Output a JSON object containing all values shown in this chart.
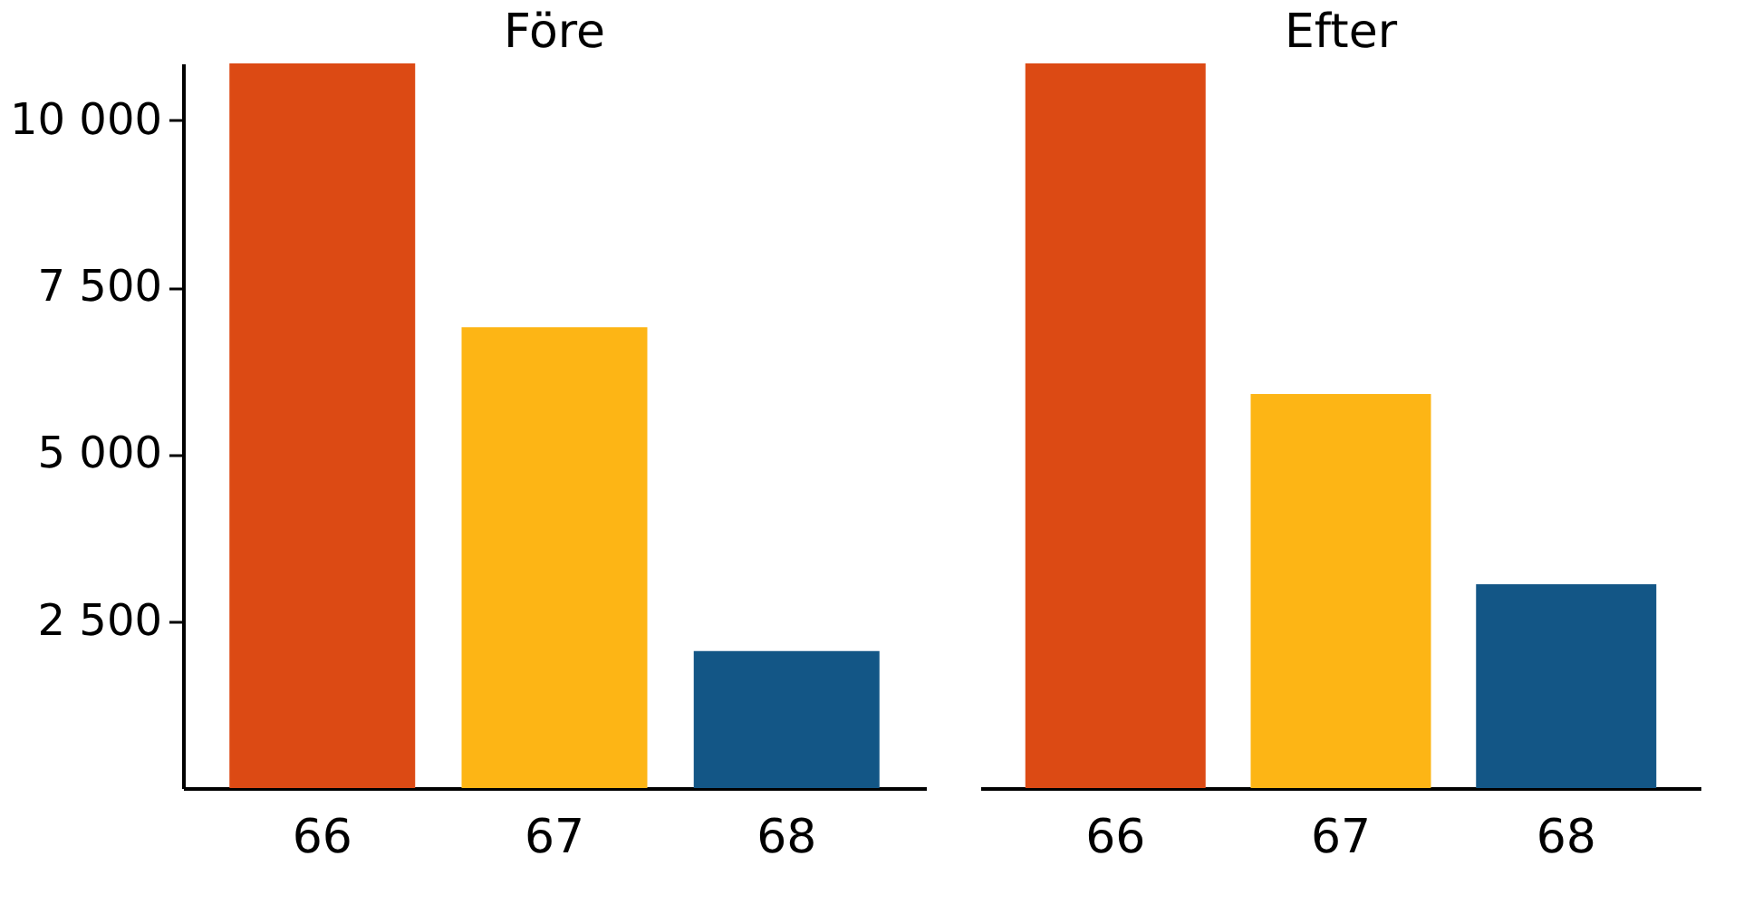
{
  "chart_data": [
    {
      "type": "bar",
      "title": "Före",
      "categories": [
        "66",
        "67",
        "68"
      ],
      "values": [
        10850,
        6900,
        2050
      ],
      "colors": [
        "#dc4a14",
        "#fdb515",
        "#135686"
      ],
      "ylim": [
        0,
        10850
      ],
      "yticks": [
        {
          "value": 2500,
          "label": "2 500"
        },
        {
          "value": 5000,
          "label": "5 000"
        },
        {
          "value": 7500,
          "label": "7 500"
        },
        {
          "value": 10000,
          "label": "10 000"
        }
      ],
      "grid": false,
      "legend": false
    },
    {
      "type": "bar",
      "title": "Efter",
      "categories": [
        "66",
        "67",
        "68"
      ],
      "values": [
        10850,
        5900,
        3050
      ],
      "colors": [
        "#dc4a14",
        "#fdb515",
        "#135686"
      ],
      "ylim": [
        0,
        10850
      ],
      "grid": false,
      "legend": false,
      "tick_labels": "x"
    }
  ]
}
